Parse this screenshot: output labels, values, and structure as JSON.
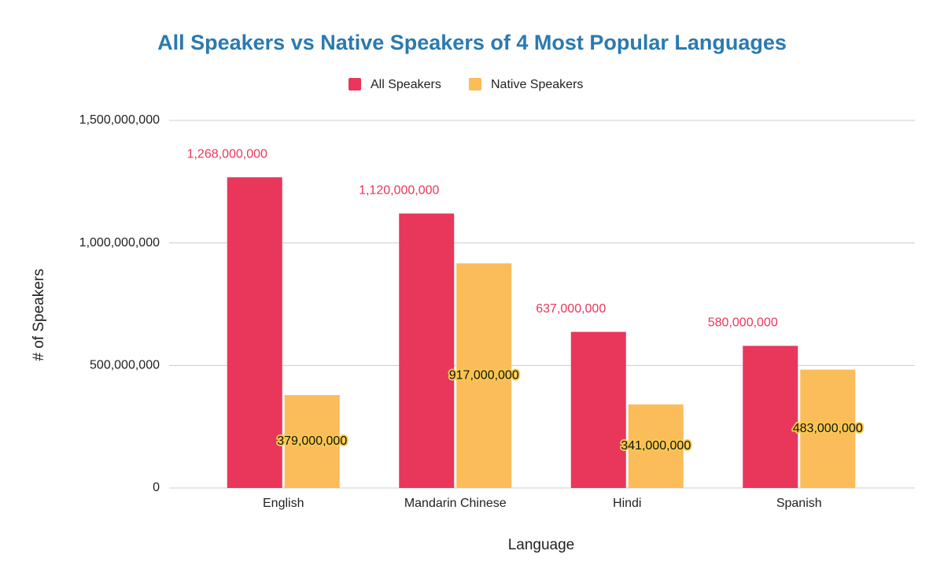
{
  "chart_data": {
    "type": "bar",
    "title": "All Speakers vs Native Speakers of 4 Most Popular Languages",
    "x_label": "Language",
    "y_label": "# of Speakers",
    "categories": [
      "English",
      "Mandarin Chinese",
      "Hindi",
      "Spanish"
    ],
    "series": [
      {
        "name": "All Speakers",
        "color": "#e8375a",
        "values": [
          1268000000,
          1120000000,
          637000000,
          580000000
        ],
        "value_labels": [
          "1,268,000,000",
          "1,120,000,000",
          "637,000,000",
          "580,000,000"
        ]
      },
      {
        "name": "Native Speakers",
        "color": "#fbbc5a",
        "values": [
          379000000,
          917000000,
          341000000,
          483000000
        ],
        "value_labels": [
          "379,000,000",
          "917,000,000",
          "341,000,000",
          "483,000,000"
        ]
      }
    ],
    "ylim": [
      0,
      1500000000
    ],
    "yticks": [
      0,
      {
        "value": 500000000,
        "label": "500,000,000"
      },
      {
        "value": 1000000000,
        "label": "1,000,000,000"
      },
      {
        "value": 1500000000,
        "label": "1,500,000,000"
      }
    ],
    "grid": true
  }
}
